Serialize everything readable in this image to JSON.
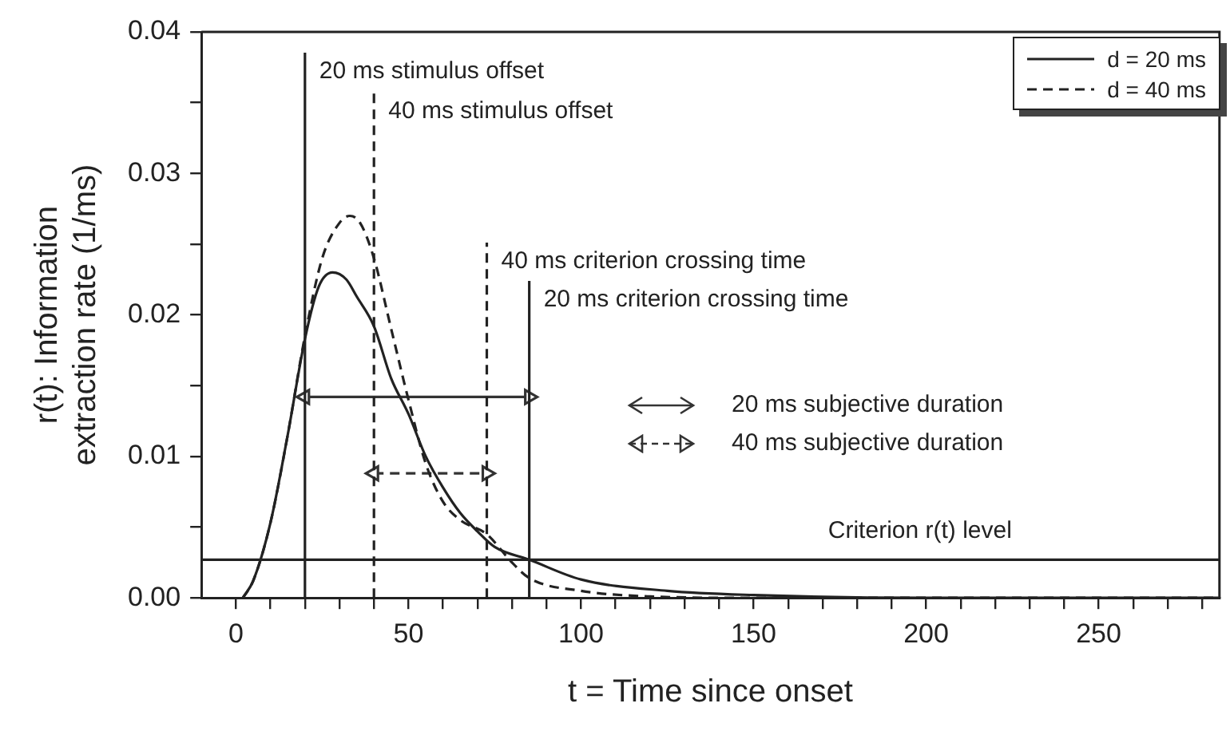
{
  "chart_data": {
    "type": "line",
    "xlabel": "t = Time since onset",
    "ylabel": "r(t): Information\nextraction rate (1/ms)",
    "xlim": [
      -10,
      285
    ],
    "ylim": [
      0,
      0.04
    ],
    "xticks": [
      {
        "value": 0,
        "label": "0"
      },
      {
        "value": 10,
        "label": null
      },
      {
        "value": 20,
        "label": null
      },
      {
        "value": 30,
        "label": null
      },
      {
        "value": 40,
        "label": null
      },
      {
        "value": 50,
        "label": "50"
      },
      {
        "value": 60,
        "label": null
      },
      {
        "value": 70,
        "label": null
      },
      {
        "value": 80,
        "label": null
      },
      {
        "value": 90,
        "label": null
      },
      {
        "value": 100,
        "label": "100"
      },
      {
        "value": 110,
        "label": null
      },
      {
        "value": 120,
        "label": null
      },
      {
        "value": 130,
        "label": null
      },
      {
        "value": 140,
        "label": null
      },
      {
        "value": 150,
        "label": "150"
      },
      {
        "value": 160,
        "label": null
      },
      {
        "value": 170,
        "label": null
      },
      {
        "value": 180,
        "label": null
      },
      {
        "value": 190,
        "label": null
      },
      {
        "value": 200,
        "label": "200"
      },
      {
        "value": 210,
        "label": null
      },
      {
        "value": 220,
        "label": null
      },
      {
        "value": 230,
        "label": null
      },
      {
        "value": 240,
        "label": null
      },
      {
        "value": 250,
        "label": "250"
      },
      {
        "value": 260,
        "label": null
      },
      {
        "value": 270,
        "label": null
      },
      {
        "value": 280,
        "label": null
      }
    ],
    "yticks": [
      {
        "value": 0,
        "label": "0.00"
      },
      {
        "value": 0.005,
        "label": null
      },
      {
        "value": 0.01,
        "label": "0.01"
      },
      {
        "value": 0.015,
        "label": null
      },
      {
        "value": 0.02,
        "label": "0.02"
      },
      {
        "value": 0.025,
        "label": null
      },
      {
        "value": 0.03,
        "label": "0.03"
      },
      {
        "value": 0.035,
        "label": null
      },
      {
        "value": 0.04,
        "label": "0.04"
      }
    ],
    "grid": false,
    "legend": "top right",
    "marker": "none",
    "series": [
      {
        "name": "d = 20 ms",
        "color": "#222222",
        "line_style": "solid",
        "x": [
          2,
          5,
          10,
          15,
          20,
          24,
          28,
          32,
          35,
          40,
          45,
          50,
          55,
          60,
          65,
          70,
          75,
          85,
          100,
          125,
          150,
          200,
          285
        ],
        "values": [
          0,
          0.0012,
          0.0053,
          0.0115,
          0.0183,
          0.022,
          0.023,
          0.0225,
          0.0213,
          0.0192,
          0.0155,
          0.013,
          0.01,
          0.0078,
          0.006,
          0.0047,
          0.0036,
          0.0027,
          0.0013,
          0.0005,
          0.0002,
          0,
          0
        ]
      },
      {
        "name": "d = 40 ms",
        "color": "#222222",
        "line_style": "dashed",
        "x": [
          2,
          5,
          10,
          15,
          20,
          25,
          30,
          33,
          36,
          40,
          45,
          50,
          55,
          60,
          65,
          72.7,
          80,
          85,
          100,
          120,
          150,
          285
        ],
        "values": [
          0,
          0.0012,
          0.0053,
          0.0115,
          0.0185,
          0.024,
          0.0265,
          0.027,
          0.0265,
          0.024,
          0.019,
          0.014,
          0.0095,
          0.0068,
          0.0055,
          0.0045,
          0.0025,
          0.0014,
          0.0005,
          0.0001,
          0,
          0
        ]
      },
      {
        "color": "#333333",
        "line_style": "solid",
        "marker": "triangle",
        "x": [
          20,
          85
        ],
        "values": [
          0.0142,
          0.0142
        ]
      },
      {
        "color": "#333333",
        "line_style": "dashed",
        "marker": "triangle",
        "x": [
          40,
          72.7
        ],
        "values": [
          0.0088,
          0.0088
        ]
      }
    ],
    "ref_lines": [
      {
        "axis": "x",
        "value": 20,
        "label": "20 ms stimulus offset",
        "line_style": "solid"
      },
      {
        "axis": "x",
        "value": 40,
        "label": "40 ms stimulus offset",
        "line_style": "dashed"
      },
      {
        "axis": "x",
        "value": 72.7,
        "label": "40 ms criterion crossing time",
        "line_style": "dashed"
      },
      {
        "axis": "x",
        "value": 85,
        "label": "20 ms criterion crossing time",
        "line_style": "solid"
      },
      {
        "axis": "y",
        "value": 0.0027,
        "label": "Criterion r(t) level",
        "line_style": "solid"
      }
    ],
    "annotations": [
      "20 ms subjective duration",
      "40 ms subjective duration"
    ]
  }
}
